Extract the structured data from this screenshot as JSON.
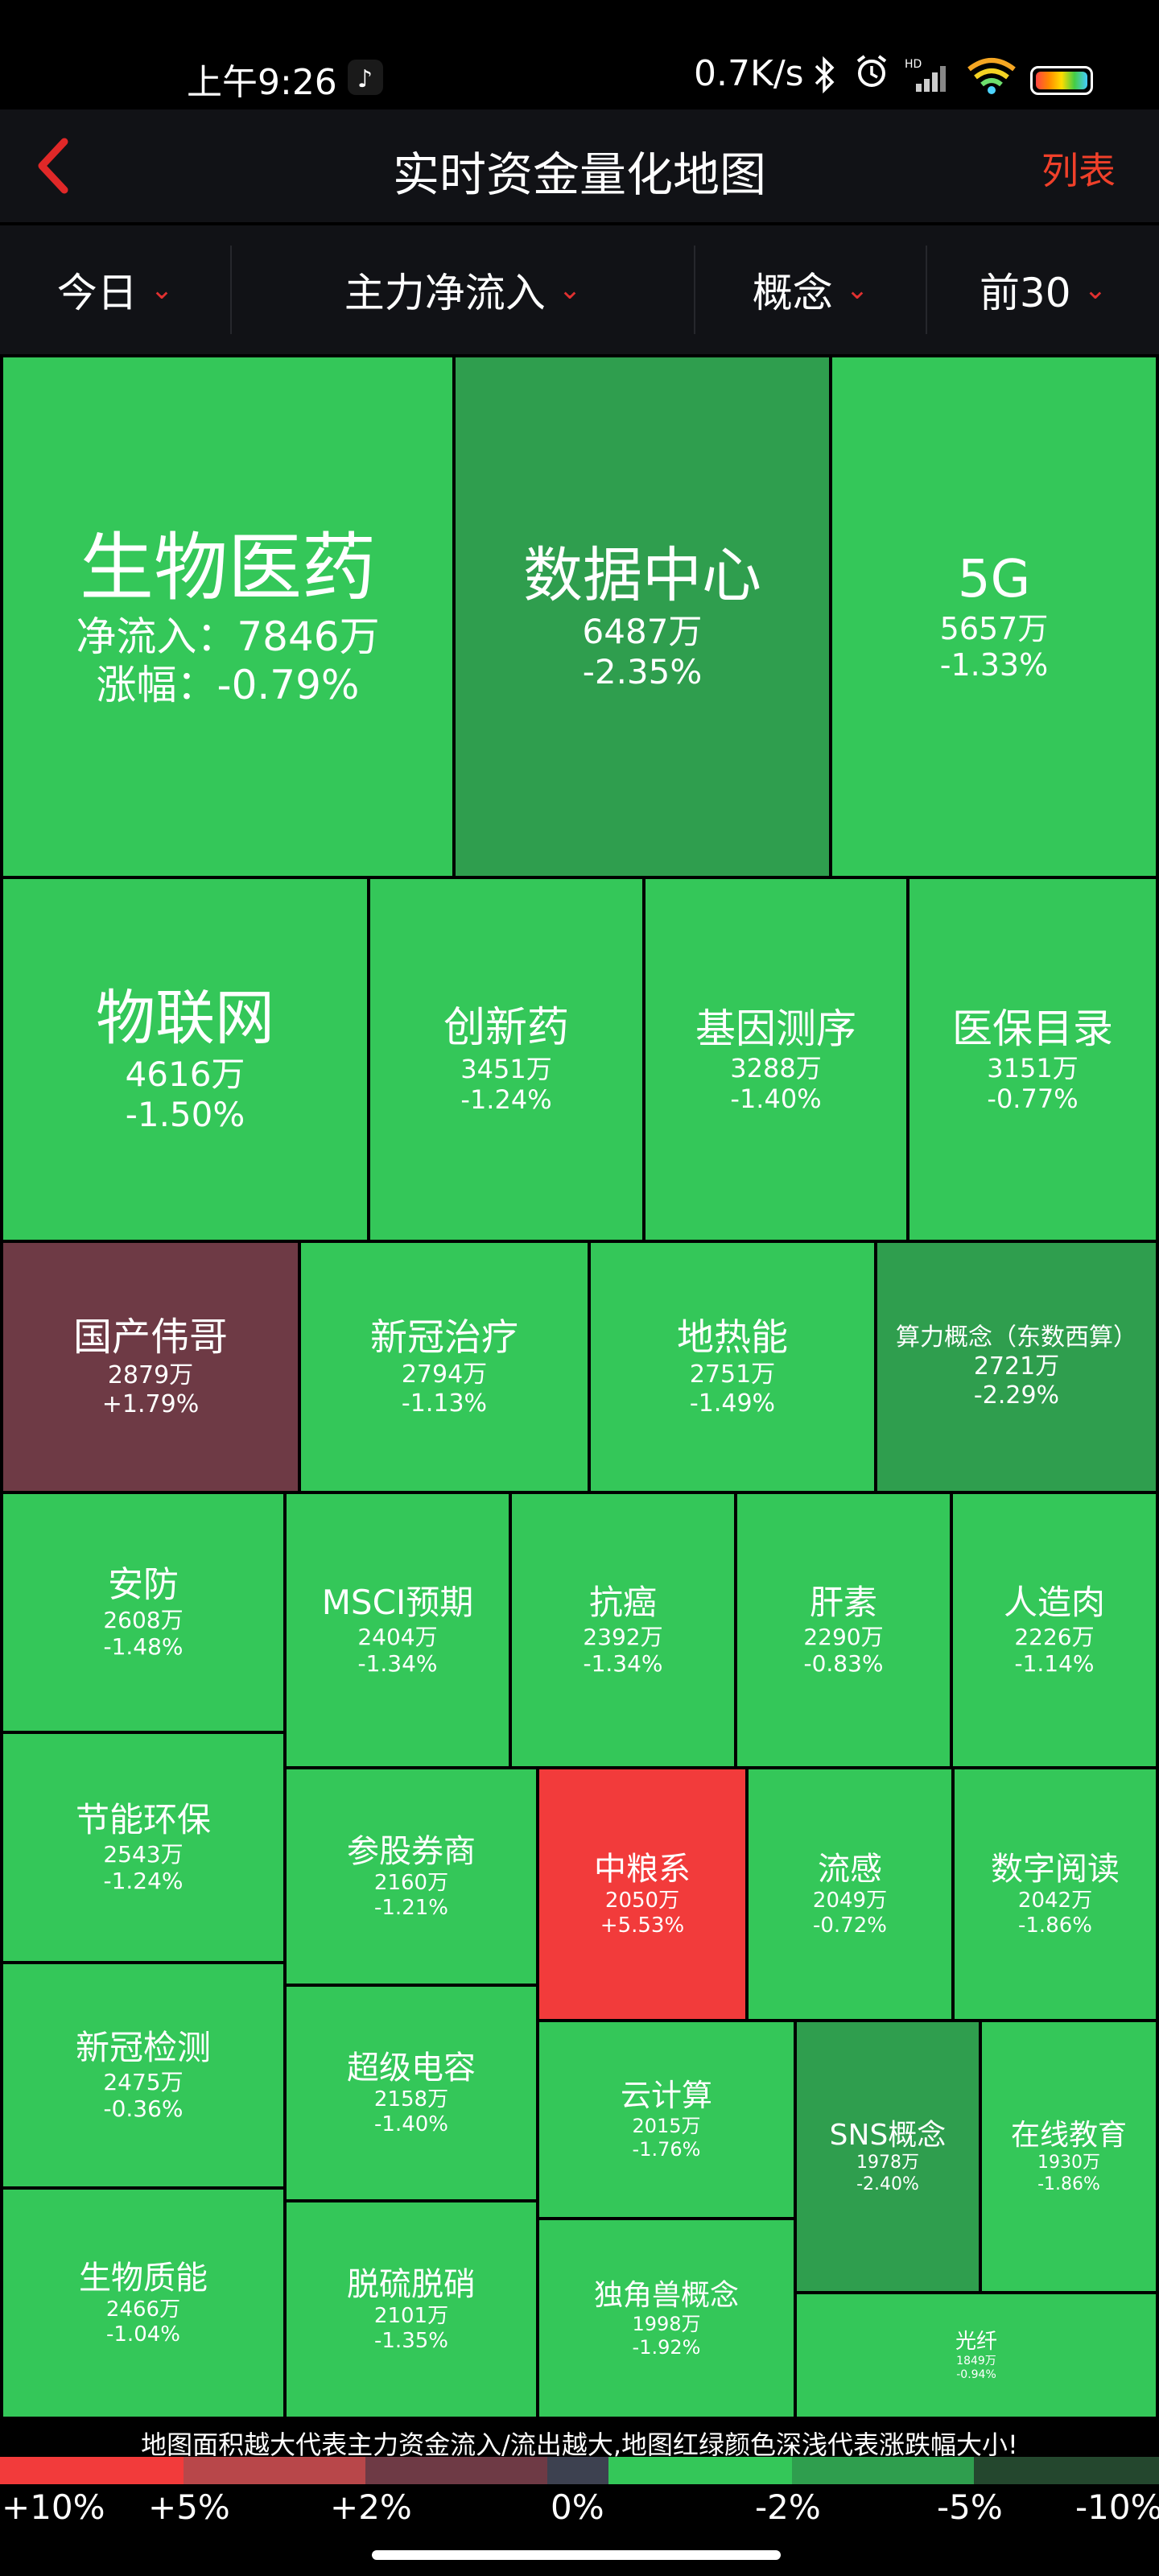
{
  "status_bar": {
    "time": "上午9:26",
    "network_speed": "0.7K/s",
    "icons": [
      "tiktok-icon",
      "bluetooth-icon",
      "alarm-icon",
      "hd-signal-icon",
      "wifi-icon",
      "battery-icon"
    ]
  },
  "nav": {
    "title": "实时资金量化地图",
    "list_label": "列表",
    "back_icon": "chevron-left-icon"
  },
  "filters": [
    {
      "label": "今日"
    },
    {
      "label": "主力净流入"
    },
    {
      "label": "概念"
    },
    {
      "label": "前30"
    }
  ],
  "filter_chevron": "⌄",
  "colors": {
    "green": "#34c759",
    "dark_green": "#2f9e4e",
    "red": "#f23b3b",
    "maroon": "#6e3a45",
    "accent": "#f0402a"
  },
  "tiles": [
    {
      "name": "生物医药",
      "flow": "净流入：7846万",
      "change": "涨幅：-0.79%",
      "color": "#34c759"
    },
    {
      "name": "数据中心",
      "flow": "6487万",
      "change": "-2.35%",
      "color": "#2f9e4e"
    },
    {
      "name": "5G",
      "flow": "5657万",
      "change": "-1.33%",
      "color": "#34c759"
    },
    {
      "name": "物联网",
      "flow": "4616万",
      "change": "-1.50%",
      "color": "#34c759"
    },
    {
      "name": "创新药",
      "flow": "3451万",
      "change": "-1.24%",
      "color": "#34c759"
    },
    {
      "name": "基因测序",
      "flow": "3288万",
      "change": "-1.40%",
      "color": "#34c759"
    },
    {
      "name": "医保目录",
      "flow": "3151万",
      "change": "-0.77%",
      "color": "#34c759"
    },
    {
      "name": "国产伟哥",
      "flow": "2879万",
      "change": "+1.79%",
      "color": "#6e3a45"
    },
    {
      "name": "新冠治疗",
      "flow": "2794万",
      "change": "-1.13%",
      "color": "#34c759"
    },
    {
      "name": "地热能",
      "flow": "2751万",
      "change": "-1.49%",
      "color": "#34c759"
    },
    {
      "name": "算力概念（东数西算）",
      "flow": "2721万",
      "change": "-2.29%",
      "color": "#2f9e4e"
    },
    {
      "name": "安防",
      "flow": "2608万",
      "change": "-1.48%",
      "color": "#34c759"
    },
    {
      "name": "MSCI预期",
      "flow": "2404万",
      "change": "-1.34%",
      "color": "#34c759"
    },
    {
      "name": "抗癌",
      "flow": "2392万",
      "change": "-1.34%",
      "color": "#34c759"
    },
    {
      "name": "肝素",
      "flow": "2290万",
      "change": "-0.83%",
      "color": "#34c759"
    },
    {
      "name": "人造肉",
      "flow": "2226万",
      "change": "-1.14%",
      "color": "#34c759"
    },
    {
      "name": "节能环保",
      "flow": "2543万",
      "change": "-1.24%",
      "color": "#34c759"
    },
    {
      "name": "参股券商",
      "flow": "2160万",
      "change": "-1.21%",
      "color": "#34c759"
    },
    {
      "name": "中粮系",
      "flow": "2050万",
      "change": "+5.53%",
      "color": "#f23b3b"
    },
    {
      "name": "流感",
      "flow": "2049万",
      "change": "-0.72%",
      "color": "#34c759"
    },
    {
      "name": "数字阅读",
      "flow": "2042万",
      "change": "-1.86%",
      "color": "#34c759"
    },
    {
      "name": "新冠检测",
      "flow": "2475万",
      "change": "-0.36%",
      "color": "#34c759"
    },
    {
      "name": "超级电容",
      "flow": "2158万",
      "change": "-1.40%",
      "color": "#34c759"
    },
    {
      "name": "云计算",
      "flow": "2015万",
      "change": "-1.76%",
      "color": "#34c759"
    },
    {
      "name": "SNS概念",
      "flow": "1978万",
      "change": "-2.40%",
      "color": "#2f9e4e"
    },
    {
      "name": "在线教育",
      "flow": "1930万",
      "change": "-1.86%",
      "color": "#34c759"
    },
    {
      "name": "生物质能",
      "flow": "2466万",
      "change": "-1.04%",
      "color": "#34c759"
    },
    {
      "name": "脱硫脱硝",
      "flow": "2101万",
      "change": "-1.35%",
      "color": "#34c759"
    },
    {
      "name": "独角兽概念",
      "flow": "1998万",
      "change": "-1.92%",
      "color": "#34c759"
    },
    {
      "name": "光纤",
      "flow": "1849万",
      "change": "-0.94%",
      "color": "#34c759"
    }
  ],
  "legend": {
    "caption": "地图面积越大代表主力资金流入/流出越大,地图红绿颜色深浅代表涨跌幅大小!",
    "colors": [
      "#f23b3b",
      "#b8474a",
      "#6e3a45",
      "#3d4150",
      "#34c759",
      "#2f9e4e",
      "#24472e"
    ],
    "labels": [
      "+10%",
      "+5%",
      "+2%",
      "0%",
      "-2%",
      "-5%",
      "-10%"
    ]
  }
}
